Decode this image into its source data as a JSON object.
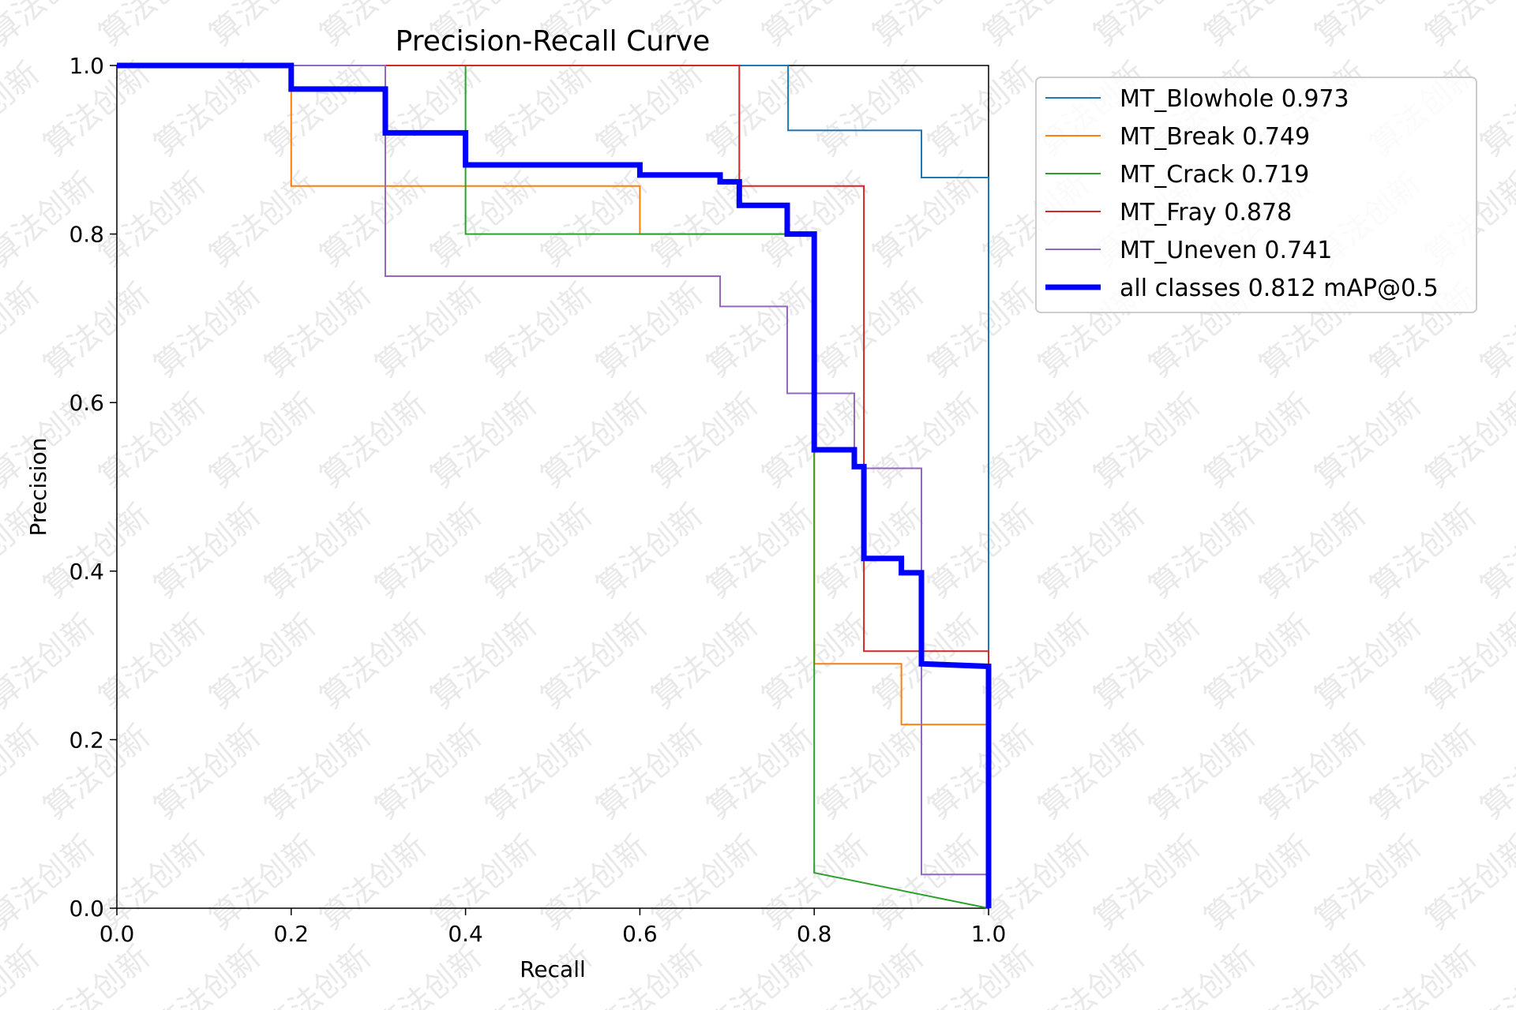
{
  "chart_data": {
    "type": "line",
    "title": "Precision-Recall Curve",
    "xlabel": "Recall",
    "ylabel": "Precision",
    "xlim": [
      0,
      1
    ],
    "ylim": [
      0,
      1
    ],
    "xticks": [
      "0.0",
      "0.2",
      "0.4",
      "0.6",
      "0.8",
      "1.0"
    ],
    "yticks": [
      "0.0",
      "0.2",
      "0.4",
      "0.6",
      "0.8",
      "1.0"
    ],
    "grid": false,
    "legend_position": "outside-right-top",
    "series": [
      {
        "name": "MT_Blowhole 0.973",
        "color": "#1f77b4",
        "emphasis": "thin",
        "points": [
          [
            0,
            1.0
          ],
          [
            0.77,
            1.0
          ],
          [
            0.77,
            0.923
          ],
          [
            0.923,
            0.923
          ],
          [
            0.923,
            0.867
          ],
          [
            1.0,
            0.867
          ],
          [
            1.0,
            0.0
          ]
        ]
      },
      {
        "name": "MT_Break 0.749",
        "color": "#ff7f0e",
        "emphasis": "thin",
        "points": [
          [
            0,
            1.0
          ],
          [
            0.2,
            1.0
          ],
          [
            0.2,
            0.857
          ],
          [
            0.6,
            0.857
          ],
          [
            0.6,
            0.8
          ],
          [
            0.8,
            0.8
          ],
          [
            0.8,
            0.29
          ],
          [
            0.9,
            0.29
          ],
          [
            0.9,
            0.218
          ],
          [
            1.0,
            0.218
          ],
          [
            1.0,
            0.0
          ]
        ]
      },
      {
        "name": "MT_Crack 0.719",
        "color": "#2ca02c",
        "emphasis": "thin",
        "points": [
          [
            0,
            1.0
          ],
          [
            0.4,
            1.0
          ],
          [
            0.4,
            0.8
          ],
          [
            0.8,
            0.8
          ],
          [
            0.8,
            0.042
          ],
          [
            1.0,
            0.0
          ]
        ]
      },
      {
        "name": "MT_Fray 0.878",
        "color": "#d62728",
        "emphasis": "thin",
        "points": [
          [
            0,
            1.0
          ],
          [
            0.714,
            1.0
          ],
          [
            0.714,
            0.857
          ],
          [
            0.857,
            0.857
          ],
          [
            0.857,
            0.305
          ],
          [
            1.0,
            0.305
          ],
          [
            1.0,
            0.0
          ]
        ]
      },
      {
        "name": "MT_Uneven 0.741",
        "color": "#9467bd",
        "emphasis": "thin",
        "points": [
          [
            0,
            1.0
          ],
          [
            0.308,
            1.0
          ],
          [
            0.308,
            0.75
          ],
          [
            0.692,
            0.75
          ],
          [
            0.692,
            0.714
          ],
          [
            0.769,
            0.714
          ],
          [
            0.769,
            0.611
          ],
          [
            0.846,
            0.611
          ],
          [
            0.846,
            0.522
          ],
          [
            0.923,
            0.522
          ],
          [
            0.923,
            0.04
          ],
          [
            1.0,
            0.04
          ],
          [
            1.0,
            0.0
          ]
        ]
      },
      {
        "name": "all classes 0.812 mAP@0.5",
        "color": "#0000ff",
        "emphasis": "thick",
        "points": [
          [
            0,
            1.0
          ],
          [
            0.2,
            1.0
          ],
          [
            0.2,
            0.972
          ],
          [
            0.308,
            0.972
          ],
          [
            0.308,
            0.92
          ],
          [
            0.4,
            0.92
          ],
          [
            0.4,
            0.882
          ],
          [
            0.6,
            0.882
          ],
          [
            0.6,
            0.87
          ],
          [
            0.692,
            0.87
          ],
          [
            0.692,
            0.862
          ],
          [
            0.714,
            0.862
          ],
          [
            0.714,
            0.834
          ],
          [
            0.769,
            0.834
          ],
          [
            0.769,
            0.8
          ],
          [
            0.8,
            0.8
          ],
          [
            0.8,
            0.544
          ],
          [
            0.846,
            0.544
          ],
          [
            0.846,
            0.524
          ],
          [
            0.857,
            0.524
          ],
          [
            0.857,
            0.415
          ],
          [
            0.9,
            0.415
          ],
          [
            0.9,
            0.398
          ],
          [
            0.923,
            0.398
          ],
          [
            0.923,
            0.29
          ],
          [
            1.0,
            0.287
          ],
          [
            1.0,
            0.0
          ]
        ]
      }
    ]
  },
  "watermark": {
    "text": "算法创新"
  }
}
